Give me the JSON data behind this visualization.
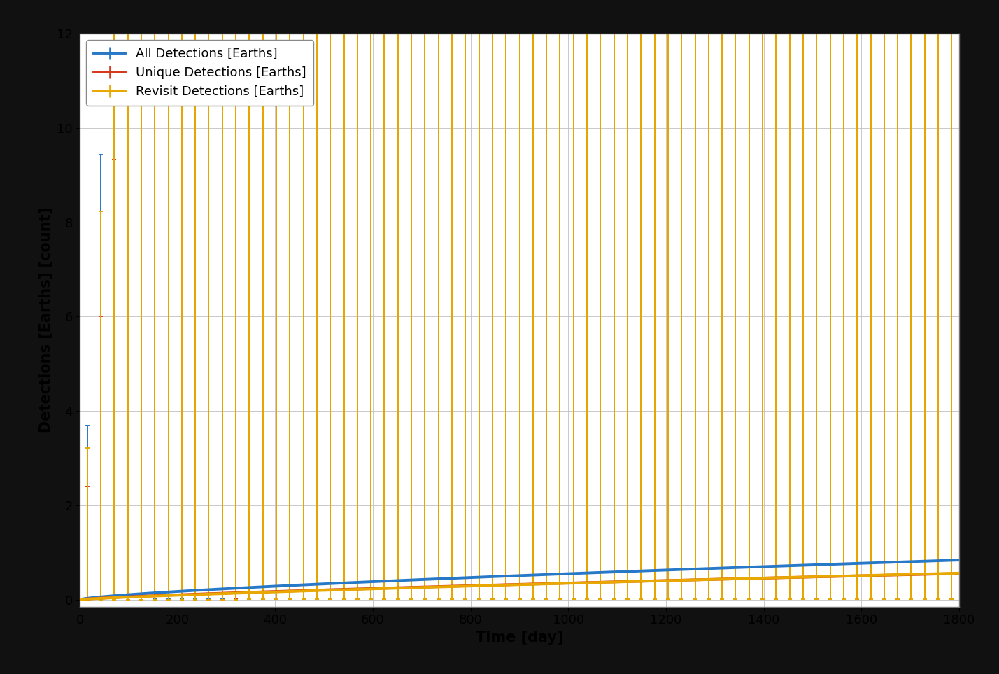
{
  "background_color": "#111111",
  "plot_bg_color": "#ffffff",
  "xlabel": "Time [day]",
  "ylabel": "Detections [Earths] [count]",
  "xlim": [
    0,
    1800
  ],
  "ylim": [
    -0.3,
    12
  ],
  "xticks": [
    0,
    200,
    400,
    600,
    800,
    1000,
    1200,
    1400,
    1600,
    1800
  ],
  "yticks": [
    0,
    2,
    4,
    6,
    8,
    10,
    12
  ],
  "series": [
    {
      "label": "All Detections [Earths]",
      "color": "#2878c8",
      "mean_a": 0.0038,
      "mean_b": 0.72,
      "mean_c": 0.0,
      "err_up_scale": 0.32,
      "err_up_exp": 0.9,
      "err_down_scale": 0.1,
      "err_down_exp": 0.75
    },
    {
      "label": "Unique Detections [Earths]",
      "color": "#d63a1a",
      "mean_a": 0.0016,
      "mean_b": 0.78,
      "mean_c": 0.0,
      "err_up_scale": 0.22,
      "err_up_exp": 0.88,
      "err_down_scale": 0.12,
      "err_down_exp": 0.8
    },
    {
      "label": "Revisit Detections [Earths]",
      "color": "#e8a800",
      "mean_a": 0.0012,
      "mean_b": 0.82,
      "mean_c": 0.0,
      "err_up_scale": 0.28,
      "err_up_exp": 0.9,
      "err_down_scale": 0.1,
      "err_down_exp": 0.78
    }
  ],
  "n_errorbars": 65,
  "linewidth": 2.8,
  "capsize": 2.5,
  "elinewidth": 1.4,
  "legend_fontsize": 13,
  "axis_label_fontsize": 15,
  "tick_fontsize": 13
}
